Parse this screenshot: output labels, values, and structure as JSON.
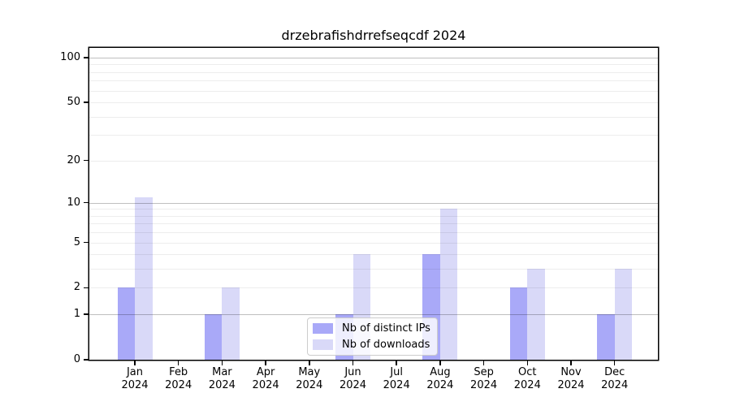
{
  "chart_data": {
    "type": "bar",
    "title": "drzebrafishdrrefseqcdf 2024",
    "x_months": [
      "Jan",
      "Feb",
      "Mar",
      "Apr",
      "May",
      "Jun",
      "Jul",
      "Aug",
      "Sep",
      "Oct",
      "Nov",
      "Dec"
    ],
    "x_year": "2024",
    "series": [
      {
        "name": "Nb of distinct IPs",
        "color": "#a9a9f8",
        "values": [
          2,
          0,
          1,
          0,
          0,
          1,
          0,
          4,
          0,
          2,
          0,
          1
        ]
      },
      {
        "name": "Nb of downloads",
        "color": "#d9d9f8",
        "values": [
          11,
          0,
          2,
          0,
          0,
          4,
          0,
          9,
          0,
          3,
          0,
          3
        ]
      }
    ],
    "y_ticks": [
      0,
      1,
      2,
      5,
      10,
      20,
      50,
      100
    ],
    "y_scale": "log10(1+value)",
    "y_top_value": 116,
    "major_gridline_values": [
      1,
      10,
      100
    ],
    "minor_gridline_values": [
      2,
      3,
      4,
      5,
      6,
      7,
      8,
      9,
      20,
      30,
      40,
      50,
      60,
      70,
      80,
      90
    ],
    "grid": true,
    "legend_position": "lower-center-inside"
  },
  "colors": {
    "background": "#ffffff",
    "axis": "#000000",
    "major_grid": "rgba(0,0,0,0.25)",
    "minor_grid": "rgba(0,0,0,0.07)",
    "bar_distinct_ips": "#a9a9f8",
    "bar_downloads": "#d9d9f8"
  }
}
